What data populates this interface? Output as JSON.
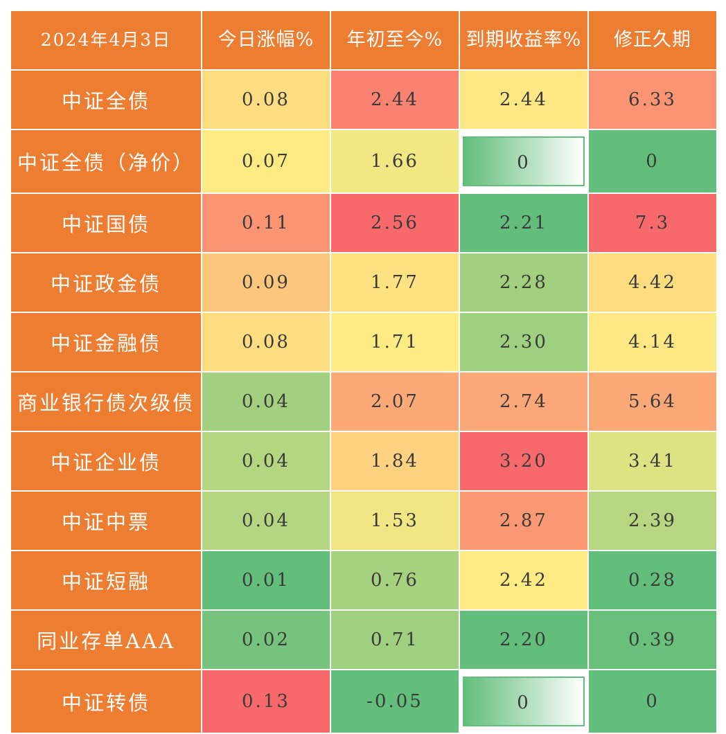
{
  "header": {
    "date": "2024年4月3日",
    "columns": [
      "今日涨幅%",
      "年初至今%",
      "到期收益率%",
      "修正久期"
    ]
  },
  "rows": [
    {
      "name": "中证全债",
      "daily": "0.08",
      "ytd": "2.44",
      "yield": "2.44",
      "duration": "6.33"
    },
    {
      "name": "中证全债（净价）",
      "daily": "0.07",
      "ytd": "1.66",
      "yield": "0",
      "duration": "0"
    },
    {
      "name": "中证国债",
      "daily": "0.11",
      "ytd": "2.56",
      "yield": "2.21",
      "duration": "7.3"
    },
    {
      "name": "中证政金债",
      "daily": "0.09",
      "ytd": "1.77",
      "yield": "2.28",
      "duration": "4.42"
    },
    {
      "name": "中证金融债",
      "daily": "0.08",
      "ytd": "1.71",
      "yield": "2.30",
      "duration": "4.14"
    },
    {
      "name": "商业银行债次级债",
      "daily": "0.04",
      "ytd": "2.07",
      "yield": "2.74",
      "duration": "5.64"
    },
    {
      "name": "中证企业债",
      "daily": "0.04",
      "ytd": "1.84",
      "yield": "3.20",
      "duration": "3.41"
    },
    {
      "name": "中证中票",
      "daily": "0.04",
      "ytd": "1.53",
      "yield": "2.87",
      "duration": "2.39"
    },
    {
      "name": "中证短融",
      "daily": "0.01",
      "ytd": "0.76",
      "yield": "2.42",
      "duration": "0.28"
    },
    {
      "name": "同业存单AAA",
      "daily": "0.02",
      "ytd": "0.71",
      "yield": "2.20",
      "duration": "0.39"
    },
    {
      "name": "中证转债",
      "daily": "0.13",
      "ytd": "-0.05",
      "yield": "0",
      "duration": "0"
    }
  ],
  "cell_colors": {
    "header_bg": "#ed7d31",
    "daily": [
      "#fedd81",
      "#feea83",
      "#fb9473",
      "#fdc67d",
      "#fedd81",
      "#a2d07f",
      "#b5d680",
      "#b5d680",
      "#63be7b",
      "#75c37c",
      "#f8696b"
    ],
    "ytd": [
      "#f98370",
      "#f1e783",
      "#f8696b",
      "#fee282",
      "#feeb84",
      "#fba977",
      "#fed280",
      "#f0e683",
      "#a6d27f",
      "#9fd07f",
      "#63be7b"
    ],
    "yield": [
      "#fee883",
      "bar",
      "#63be7b",
      "#a2d07f",
      "#9fd07f",
      "#fca777",
      "#f8696b",
      "#fb9874",
      "#ffeb84",
      "#63be7b",
      "bar"
    ],
    "duration": [
      "#fa9473",
      "#63be7b",
      "#f8696b",
      "#fedd81",
      "#fee883",
      "#fba877",
      "#dde383",
      "#b6d780",
      "#63be7b",
      "#69c07b",
      "#63be7b"
    ]
  }
}
